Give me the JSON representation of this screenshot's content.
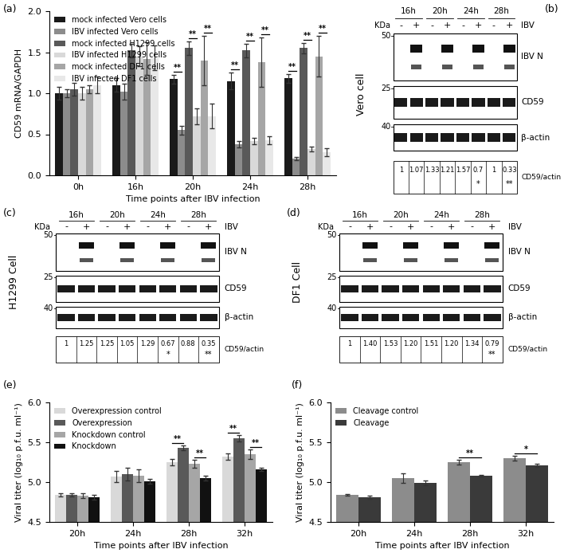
{
  "chart_data": [
    {
      "type": "bar",
      "panel": "(a)",
      "y_label": "CD59 mRNA/GAPDH",
      "x_label": "Time points after IBV infection",
      "categories": [
        "0h",
        "16h",
        "20h",
        "24h",
        "28h"
      ],
      "series": [
        {
          "name": "mock infected Vero cells",
          "color": "#1a1a1a",
          "values": [
            1.0,
            1.1,
            1.17,
            1.15,
            1.18
          ],
          "errors": [
            0.08,
            0.08,
            0.05,
            0.1,
            0.05
          ]
        },
        {
          "name": "IBV infected Vero cells",
          "color": "#8c8c8c",
          "values": [
            1.0,
            1.02,
            0.55,
            0.38,
            0.2
          ],
          "errors": [
            0.05,
            0.1,
            0.05,
            0.04,
            0.02
          ]
        },
        {
          "name": "mock infected H1299 cells",
          "color": "#595959",
          "values": [
            1.05,
            1.52,
            1.55,
            1.52,
            1.55
          ],
          "errors": [
            0.08,
            0.08,
            0.08,
            0.08,
            0.06
          ]
        },
        {
          "name": "IBV infected H1299 cells",
          "color": "#d9d9d9",
          "values": [
            1.0,
            1.45,
            0.72,
            0.42,
            0.32
          ],
          "errors": [
            0.08,
            0.12,
            0.1,
            0.04,
            0.03
          ]
        },
        {
          "name": "mock infected DF1 cells",
          "color": "#a6a6a6",
          "values": [
            1.05,
            1.42,
            1.4,
            1.38,
            1.45
          ],
          "errors": [
            0.05,
            0.2,
            0.3,
            0.3,
            0.25
          ]
        },
        {
          "name": "IBV infected DF1 cells",
          "color": "#e8e8e8",
          "values": [
            1.1,
            1.43,
            0.72,
            0.43,
            0.28
          ],
          "errors": [
            0.1,
            0.15,
            0.15,
            0.05,
            0.05
          ]
        }
      ],
      "ylim": [
        0,
        2.0
      ],
      "yticks": [
        {
          "value": 0,
          "label": "0.0"
        },
        {
          "value": 0.5,
          "label": "0.5"
        },
        {
          "value": 1.0,
          "label": "1.0"
        },
        {
          "value": 1.5,
          "label": "1.5"
        },
        {
          "value": 2.0,
          "label": "2.0"
        }
      ],
      "legend": "upper left",
      "significance": [
        {
          "text": "**",
          "category": "20h",
          "series": [
            0,
            1
          ]
        },
        {
          "text": "**",
          "category": "20h",
          "series": [
            2,
            3
          ]
        },
        {
          "text": "**",
          "category": "20h",
          "series": [
            4,
            5
          ]
        },
        {
          "text": "**",
          "category": "24h",
          "series": [
            0,
            1
          ]
        },
        {
          "text": "**",
          "category": "24h",
          "series": [
            2,
            3
          ]
        },
        {
          "text": "**",
          "category": "24h",
          "series": [
            4,
            5
          ]
        },
        {
          "text": "**",
          "category": "28h",
          "series": [
            0,
            1
          ]
        },
        {
          "text": "**",
          "category": "28h",
          "series": [
            2,
            3
          ]
        },
        {
          "text": "**",
          "category": "28h",
          "series": [
            4,
            5
          ]
        }
      ]
    },
    {
      "type": "western_blot",
      "panel": "(b)",
      "cell_label": "Vero cell",
      "kda_label": "KDa",
      "treatment": "IBV",
      "time_points": [
        "16h",
        "20h",
        "24h",
        "28h"
      ],
      "lanes": [
        "-",
        "+"
      ],
      "bands": [
        {
          "name": "IBV N",
          "marker": 50
        },
        {
          "name": "CD59",
          "marker": 25
        },
        {
          "name": "β-actin",
          "marker": 40
        }
      ],
      "ratio_label": "CD59/actin",
      "ratios": [
        1,
        1.07,
        1.33,
        1.21,
        1.57,
        0.7,
        1,
        0.33
      ],
      "ratio_marks": [
        null,
        null,
        null,
        null,
        null,
        "*",
        null,
        "**"
      ]
    },
    {
      "type": "western_blot",
      "panel": "(c)",
      "cell_label": "H1299 Cell",
      "kda_label": "KDa",
      "treatment": "IBV",
      "time_points": [
        "16h",
        "20h",
        "24h",
        "28h"
      ],
      "lanes": [
        "-",
        "+"
      ],
      "bands": [
        {
          "name": "IBV N",
          "marker": 50
        },
        {
          "name": "CD59",
          "marker": 25
        },
        {
          "name": "β-actin",
          "marker": 40
        }
      ],
      "ratio_label": "CD59/actin",
      "ratios": [
        1,
        1.25,
        1.25,
        1.05,
        1.29,
        0.67,
        0.88,
        0.35
      ],
      "ratio_marks": [
        null,
        null,
        null,
        null,
        null,
        "*",
        null,
        "**"
      ]
    },
    {
      "type": "western_blot",
      "panel": "(d)",
      "cell_label": "DF1 Cell",
      "kda_label": "KDa",
      "treatment": "IBV",
      "time_points": [
        "16h",
        "20h",
        "24h",
        "28h"
      ],
      "lanes": [
        "-",
        "+"
      ],
      "bands": [
        {
          "name": "IBV N",
          "marker": 50
        },
        {
          "name": "CD59",
          "marker": 25
        },
        {
          "name": "β-actin",
          "marker": 40
        }
      ],
      "ratio_label": "CD59/actin",
      "ratios": [
        1,
        1.4,
        1.53,
        1.2,
        1.51,
        1.2,
        1.34,
        0.79
      ],
      "ratio_labels": [
        "1",
        "1.40",
        "1.53",
        "1.20",
        "1.51",
        "1.20",
        "1.34",
        "0.79"
      ],
      "ratio_marks": [
        null,
        null,
        null,
        null,
        null,
        null,
        null,
        "**"
      ]
    },
    {
      "type": "bar",
      "panel": "(e)",
      "y_label": "Viral titer (log₁₀ p.f.u. ml⁻¹)",
      "x_label": "Time points after IBV infection",
      "categories": [
        "20h",
        "24h",
        "28h",
        "32h"
      ],
      "series": [
        {
          "name": "Overexpression control",
          "color": "#d9d9d9",
          "values": [
            4.84,
            5.07,
            5.25,
            5.32
          ],
          "errors": [
            0.02,
            0.07,
            0.04,
            0.04
          ]
        },
        {
          "name": "Overexpression",
          "color": "#595959",
          "values": [
            4.84,
            5.1,
            5.43,
            5.55
          ],
          "errors": [
            0.02,
            0.08,
            0.03,
            0.04
          ]
        },
        {
          "name": "Knockdown control",
          "color": "#a6a6a6",
          "values": [
            4.83,
            5.08,
            5.23,
            5.35
          ],
          "errors": [
            0.03,
            0.08,
            0.05,
            0.06
          ]
        },
        {
          "name": "Knockdown",
          "color": "#111111",
          "values": [
            4.81,
            5.01,
            5.05,
            5.16
          ],
          "errors": [
            0.03,
            0.03,
            0.03,
            0.02
          ]
        }
      ],
      "ylim": [
        4.5,
        6.0
      ],
      "yticks": [
        4.5,
        {
          "value": 5.0,
          "label": "5.0"
        },
        5.5,
        {
          "value": 6.0,
          "label": "6.0"
        }
      ],
      "legend": "upper left",
      "significance": [
        {
          "text": "**",
          "category": "28h",
          "series": [
            0,
            1
          ]
        },
        {
          "text": "**",
          "category": "28h",
          "series": [
            2,
            3
          ]
        },
        {
          "text": "**",
          "category": "32h",
          "series": [
            0,
            1
          ]
        },
        {
          "text": "**",
          "category": "32h",
          "series": [
            2,
            3
          ]
        }
      ]
    },
    {
      "type": "bar",
      "panel": "(f)",
      "y_label": "Viral titer (log₁₀ p.f.u. ml⁻¹)",
      "x_label": "Time points after IBV infection",
      "categories": [
        "20h",
        "24h",
        "28h",
        "32h"
      ],
      "series": [
        {
          "name": "Cleavage control",
          "color": "#8c8c8c",
          "values": [
            4.84,
            5.05,
            5.25,
            5.3
          ],
          "errors": [
            0.01,
            0.06,
            0.03,
            0.03
          ]
        },
        {
          "name": "Cleavage",
          "color": "#3a3a3a",
          "values": [
            4.81,
            4.99,
            5.08,
            5.21
          ],
          "errors": [
            0.02,
            0.03,
            0.01,
            0.02
          ]
        }
      ],
      "ylim": [
        4.5,
        6.0
      ],
      "yticks": [
        4.5,
        {
          "value": 5.0,
          "label": "5.0"
        },
        5.5,
        {
          "value": 6.0,
          "label": "6.0"
        }
      ],
      "legend": "upper left",
      "significance": [
        {
          "text": "**",
          "category": "28h",
          "series": [
            0,
            1
          ]
        },
        {
          "text": "*",
          "category": "32h",
          "series": [
            0,
            1
          ]
        }
      ]
    }
  ]
}
